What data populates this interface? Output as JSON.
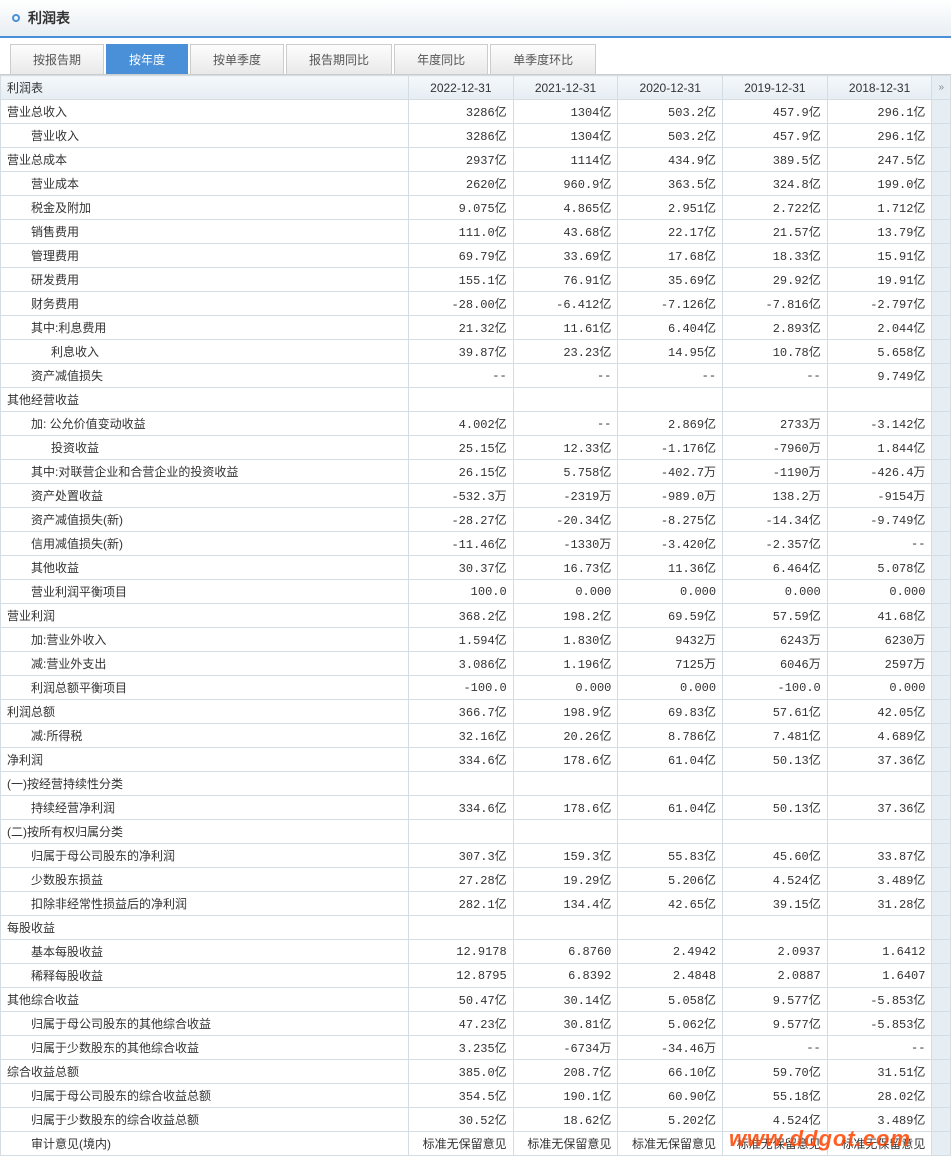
{
  "header": {
    "title": "利润表"
  },
  "tabs": [
    "按报告期",
    "按年度",
    "按单季度",
    "报告期同比",
    "年度同比",
    "单季度环比"
  ],
  "activeTab": 1,
  "columns": [
    "利润表",
    "2022-12-31",
    "2021-12-31",
    "2020-12-31",
    "2019-12-31",
    "2018-12-31"
  ],
  "rows": [
    {
      "label": "营业总收入",
      "indent": 0,
      "v": [
        "3286亿",
        "1304亿",
        "503.2亿",
        "457.9亿",
        "296.1亿"
      ]
    },
    {
      "label": "营业收入",
      "indent": 1,
      "v": [
        "3286亿",
        "1304亿",
        "503.2亿",
        "457.9亿",
        "296.1亿"
      ]
    },
    {
      "label": "营业总成本",
      "indent": 0,
      "v": [
        "2937亿",
        "1114亿",
        "434.9亿",
        "389.5亿",
        "247.5亿"
      ]
    },
    {
      "label": "营业成本",
      "indent": 1,
      "v": [
        "2620亿",
        "960.9亿",
        "363.5亿",
        "324.8亿",
        "199.0亿"
      ]
    },
    {
      "label": "税金及附加",
      "indent": 1,
      "v": [
        "9.075亿",
        "4.865亿",
        "2.951亿",
        "2.722亿",
        "1.712亿"
      ]
    },
    {
      "label": "销售费用",
      "indent": 1,
      "v": [
        "111.0亿",
        "43.68亿",
        "22.17亿",
        "21.57亿",
        "13.79亿"
      ]
    },
    {
      "label": "管理费用",
      "indent": 1,
      "v": [
        "69.79亿",
        "33.69亿",
        "17.68亿",
        "18.33亿",
        "15.91亿"
      ]
    },
    {
      "label": "研发费用",
      "indent": 1,
      "v": [
        "155.1亿",
        "76.91亿",
        "35.69亿",
        "29.92亿",
        "19.91亿"
      ]
    },
    {
      "label": "财务费用",
      "indent": 1,
      "v": [
        "-28.00亿",
        "-6.412亿",
        "-7.126亿",
        "-7.816亿",
        "-2.797亿"
      ]
    },
    {
      "label": "其中:利息费用",
      "indent": 1,
      "v": [
        "21.32亿",
        "11.61亿",
        "6.404亿",
        "2.893亿",
        "2.044亿"
      ]
    },
    {
      "label": "利息收入",
      "indent": 2,
      "v": [
        "39.87亿",
        "23.23亿",
        "14.95亿",
        "10.78亿",
        "5.658亿"
      ]
    },
    {
      "label": "资产减值损失",
      "indent": 1,
      "v": [
        "--",
        "--",
        "--",
        "--",
        "9.749亿"
      ]
    },
    {
      "label": "其他经营收益",
      "indent": 0,
      "v": [
        "",
        "",
        "",
        "",
        ""
      ]
    },
    {
      "label": "加: 公允价值变动收益",
      "indent": 1,
      "v": [
        "4.002亿",
        "--",
        "2.869亿",
        "2733万",
        "-3.142亿"
      ]
    },
    {
      "label": "投资收益",
      "indent": 2,
      "v": [
        "25.15亿",
        "12.33亿",
        "-1.176亿",
        "-7960万",
        "1.844亿"
      ]
    },
    {
      "label": "其中:对联营企业和合营企业的投资收益",
      "indent": 1,
      "v": [
        "26.15亿",
        "5.758亿",
        "-402.7万",
        "-1190万",
        "-426.4万"
      ]
    },
    {
      "label": "资产处置收益",
      "indent": 1,
      "v": [
        "-532.3万",
        "-2319万",
        "-989.0万",
        "138.2万",
        "-9154万"
      ]
    },
    {
      "label": "资产减值损失(新)",
      "indent": 1,
      "v": [
        "-28.27亿",
        "-20.34亿",
        "-8.275亿",
        "-14.34亿",
        "-9.749亿"
      ]
    },
    {
      "label": "信用减值损失(新)",
      "indent": 1,
      "v": [
        "-11.46亿",
        "-1330万",
        "-3.420亿",
        "-2.357亿",
        "--"
      ]
    },
    {
      "label": "其他收益",
      "indent": 1,
      "v": [
        "30.37亿",
        "16.73亿",
        "11.36亿",
        "6.464亿",
        "5.078亿"
      ]
    },
    {
      "label": "营业利润平衡项目",
      "indent": 1,
      "v": [
        "100.0",
        "0.000",
        "0.000",
        "0.000",
        "0.000"
      ]
    },
    {
      "label": "营业利润",
      "indent": 0,
      "v": [
        "368.2亿",
        "198.2亿",
        "69.59亿",
        "57.59亿",
        "41.68亿"
      ]
    },
    {
      "label": "加:营业外收入",
      "indent": 1,
      "v": [
        "1.594亿",
        "1.830亿",
        "9432万",
        "6243万",
        "6230万"
      ]
    },
    {
      "label": "减:营业外支出",
      "indent": 1,
      "v": [
        "3.086亿",
        "1.196亿",
        "7125万",
        "6046万",
        "2597万"
      ]
    },
    {
      "label": "利润总额平衡项目",
      "indent": 1,
      "v": [
        "-100.0",
        "0.000",
        "0.000",
        "-100.0",
        "0.000"
      ]
    },
    {
      "label": "利润总额",
      "indent": 0,
      "v": [
        "366.7亿",
        "198.9亿",
        "69.83亿",
        "57.61亿",
        "42.05亿"
      ]
    },
    {
      "label": "减:所得税",
      "indent": 1,
      "v": [
        "32.16亿",
        "20.26亿",
        "8.786亿",
        "7.481亿",
        "4.689亿"
      ]
    },
    {
      "label": "净利润",
      "indent": 0,
      "v": [
        "334.6亿",
        "178.6亿",
        "61.04亿",
        "50.13亿",
        "37.36亿"
      ]
    },
    {
      "label": "(一)按经营持续性分类",
      "indent": 0,
      "v": [
        "",
        "",
        "",
        "",
        ""
      ]
    },
    {
      "label": "持续经营净利润",
      "indent": 1,
      "v": [
        "334.6亿",
        "178.6亿",
        "61.04亿",
        "50.13亿",
        "37.36亿"
      ]
    },
    {
      "label": "(二)按所有权归属分类",
      "indent": 0,
      "v": [
        "",
        "",
        "",
        "",
        ""
      ]
    },
    {
      "label": "归属于母公司股东的净利润",
      "indent": 1,
      "v": [
        "307.3亿",
        "159.3亿",
        "55.83亿",
        "45.60亿",
        "33.87亿"
      ]
    },
    {
      "label": "少数股东损益",
      "indent": 1,
      "v": [
        "27.28亿",
        "19.29亿",
        "5.206亿",
        "4.524亿",
        "3.489亿"
      ]
    },
    {
      "label": "扣除非经常性损益后的净利润",
      "indent": 1,
      "v": [
        "282.1亿",
        "134.4亿",
        "42.65亿",
        "39.15亿",
        "31.28亿"
      ]
    },
    {
      "label": "每股收益",
      "indent": 0,
      "v": [
        "",
        "",
        "",
        "",
        ""
      ]
    },
    {
      "label": "基本每股收益",
      "indent": 1,
      "v": [
        "12.9178",
        "6.8760",
        "2.4942",
        "2.0937",
        "1.6412"
      ]
    },
    {
      "label": "稀释每股收益",
      "indent": 1,
      "v": [
        "12.8795",
        "6.8392",
        "2.4848",
        "2.0887",
        "1.6407"
      ]
    },
    {
      "label": "其他综合收益",
      "indent": 0,
      "v": [
        "50.47亿",
        "30.14亿",
        "5.058亿",
        "9.577亿",
        "-5.853亿"
      ]
    },
    {
      "label": "归属于母公司股东的其他综合收益",
      "indent": 1,
      "v": [
        "47.23亿",
        "30.81亿",
        "5.062亿",
        "9.577亿",
        "-5.853亿"
      ]
    },
    {
      "label": "归属于少数股东的其他综合收益",
      "indent": 1,
      "v": [
        "3.235亿",
        "-6734万",
        "-34.46万",
        "--",
        "--"
      ]
    },
    {
      "label": "综合收益总额",
      "indent": 0,
      "v": [
        "385.0亿",
        "208.7亿",
        "66.10亿",
        "59.70亿",
        "31.51亿"
      ]
    },
    {
      "label": "归属于母公司股东的综合收益总额",
      "indent": 1,
      "v": [
        "354.5亿",
        "190.1亿",
        "60.90亿",
        "55.18亿",
        "28.02亿"
      ]
    },
    {
      "label": "归属于少数股东的综合收益总额",
      "indent": 1,
      "v": [
        "30.52亿",
        "18.62亿",
        "5.202亿",
        "4.524亿",
        "3.489亿"
      ]
    },
    {
      "label": "审计意见(境内)",
      "indent": 1,
      "v": [
        "标准无保留意见",
        "标准无保留意见",
        "标准无保留意见",
        "标准无保留意见",
        "标准无保留意见"
      ]
    }
  ],
  "watermark": "www.ddgot.com"
}
